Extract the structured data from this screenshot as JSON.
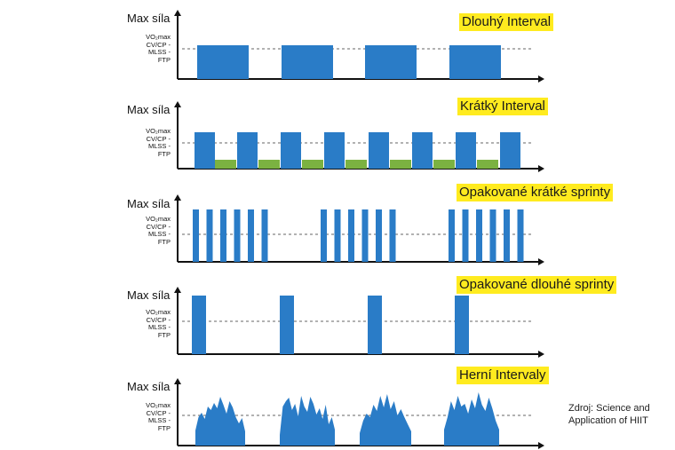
{
  "panels": [
    {
      "title": "Dlouhý Interval",
      "ylabel": "Max síla",
      "midlabel": [
        "VO₂max",
        "CV/CP -",
        "MLSS -",
        "FTP"
      ]
    },
    {
      "title": "Krátký Interval",
      "ylabel": "Max síla",
      "midlabel": [
        "VO₂max",
        "CV/CP -",
        "MLSS -",
        "FTP"
      ]
    },
    {
      "title": "Opakované krátké sprinty",
      "ylabel": "Max síla",
      "midlabel": [
        "VO₂max",
        "CV/CP -",
        "MLSS -",
        "FTP"
      ]
    },
    {
      "title": "Opakované dlouhé sprinty",
      "ylabel": "Max síla",
      "midlabel": [
        "VO₂max",
        "CV/CP -",
        "MLSS -",
        "FTP"
      ]
    },
    {
      "title": "Herní Intervaly",
      "ylabel": "Max síla",
      "midlabel": [
        "VO₂max",
        "CV/CP -",
        "MLSS -",
        "FTP"
      ]
    }
  ],
  "source": [
    "Zdroj: Science and",
    "Application of HIIT"
  ],
  "colors": {
    "bar": "#2a7cc7",
    "rest": "#7bb241",
    "highlight": "#ffeb1f",
    "axis": "#111111"
  }
}
